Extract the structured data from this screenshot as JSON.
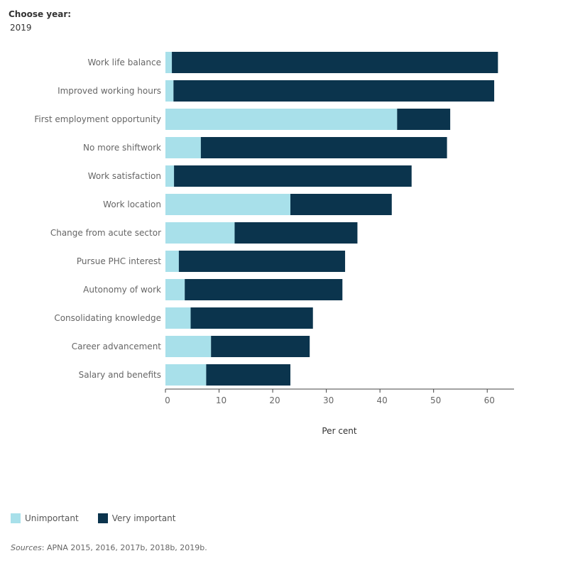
{
  "filter": {
    "label": "Choose year:",
    "value": "2019"
  },
  "colors": {
    "unimportant": "#a8e0ea",
    "very_important": "#0b344d"
  },
  "chart_data": {
    "type": "bar",
    "orientation": "horizontal",
    "stacked": true,
    "categories": [
      "Work life balance",
      "Improved working hours",
      "First employment opportunity",
      "No more shiftwork",
      "Work satisfaction",
      "Work location",
      "Change from acute sector",
      "Pursue PHC interest",
      "Autonomy of work",
      "Consolidating knowledge",
      "Career advancement",
      "Salary and benefits"
    ],
    "series": [
      {
        "name": "Unimportant",
        "values": [
          1.2,
          1.5,
          43.2,
          6.6,
          1.6,
          23.3,
          12.9,
          2.5,
          3.6,
          4.7,
          8.5,
          7.6
        ]
      },
      {
        "name": "Very important",
        "values": [
          60.8,
          59.8,
          9.9,
          45.9,
          44.3,
          18.9,
          22.9,
          31.0,
          29.4,
          22.8,
          18.4,
          15.7
        ]
      }
    ],
    "xlabel": "Per cent",
    "ylabel": "",
    "xlim": [
      0,
      65
    ],
    "xticks": [
      0,
      10,
      20,
      30,
      40,
      50,
      60
    ],
    "legend_position": "bottom-left",
    "grid": false
  },
  "legend": {
    "items": [
      {
        "label": "Unimportant"
      },
      {
        "label": "Very important"
      }
    ]
  },
  "source": {
    "prefix": "Sources",
    "text": ": APNA 2015, 2016, 2017b, 2018b, 2019b."
  }
}
